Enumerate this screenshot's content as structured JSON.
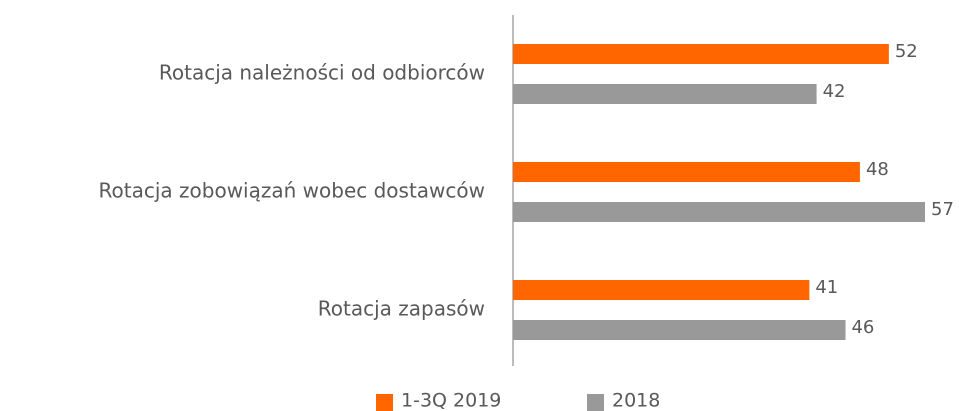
{
  "chart_data": {
    "type": "bar",
    "orientation": "horizontal",
    "categories": [
      "Rotacja należności od odbiorców",
      "Rotacja zobowiązań wobec dostawców",
      "Rotacja zapasów"
    ],
    "series": [
      {
        "name": "1-3Q 2019",
        "color": "#ff6600",
        "values": [
          52,
          48,
          41
        ]
      },
      {
        "name": "2018",
        "color": "#999999",
        "values": [
          42,
          57,
          46
        ]
      }
    ]
  }
}
